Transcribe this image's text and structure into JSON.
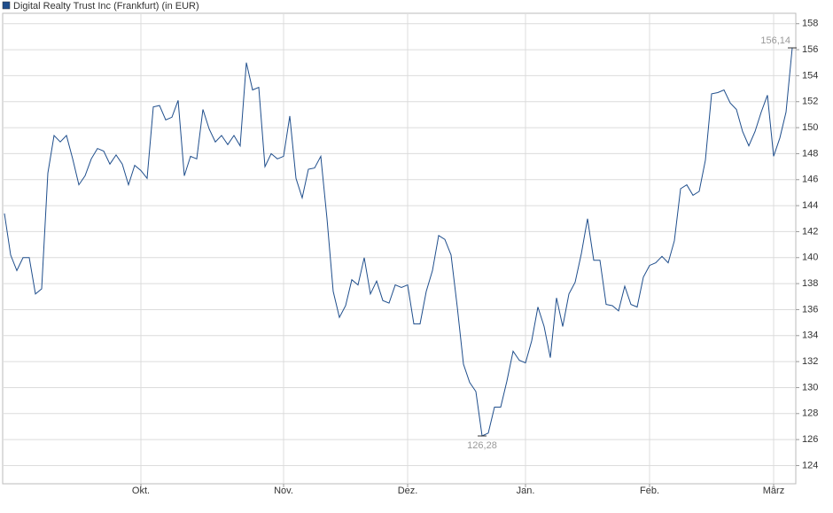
{
  "chart_data": {
    "type": "line",
    "categories": [
      null,
      null,
      null,
      null,
      null,
      null,
      null,
      null,
      null,
      null,
      null,
      null,
      null,
      null,
      null,
      null,
      null,
      null,
      null,
      null,
      null,
      null,
      "Okt.",
      null,
      null,
      null,
      null,
      null,
      null,
      null,
      null,
      null,
      null,
      null,
      null,
      null,
      null,
      null,
      null,
      null,
      null,
      null,
      null,
      null,
      null,
      "Nov.",
      null,
      null,
      null,
      null,
      null,
      null,
      null,
      null,
      null,
      null,
      null,
      null,
      null,
      null,
      null,
      null,
      null,
      null,
      null,
      "Dez.",
      null,
      null,
      null,
      null,
      null,
      null,
      null,
      null,
      null,
      null,
      null,
      null,
      null,
      null,
      null,
      null,
      null,
      null,
      "Jan.",
      null,
      null,
      null,
      null,
      null,
      null,
      null,
      null,
      null,
      null,
      null,
      null,
      null,
      null,
      null,
      null,
      null,
      null,
      null,
      "Feb.",
      null,
      null,
      null,
      null,
      null,
      null,
      null,
      null,
      null,
      null,
      null,
      null,
      null,
      null,
      null,
      null,
      null,
      null,
      null,
      "März",
      null,
      null,
      null
    ],
    "series": [
      {
        "name": "Digital Realty Trust Inc (Frankfurt) (in EUR)",
        "color": "#1f4e8c",
        "values": [
          143.4,
          140.2,
          139,
          140,
          140,
          137.2,
          137.6,
          146.5,
          149.4,
          148.9,
          149.4,
          147.6,
          145.6,
          146.3,
          147.6,
          148.4,
          148.2,
          147.2,
          147.9,
          147.2,
          145.6,
          147.1,
          146.7,
          146.1,
          151.6,
          151.7,
          150.6,
          150.8,
          152.1,
          146.3,
          147.8,
          147.6,
          151.4,
          149.9,
          148.9,
          149.4,
          148.7,
          149.4,
          148.6,
          155,
          152.9,
          153.1,
          147,
          148,
          147.6,
          147.8,
          150.9,
          146.1,
          144.6,
          146.8,
          146.9,
          147.8,
          143,
          137.4,
          135.4,
          136.3,
          138.3,
          137.9,
          140,
          137.2,
          138.2,
          136.7,
          136.5,
          137.9,
          137.7,
          137.9,
          134.9,
          134.9,
          137.4,
          139,
          141.7,
          141.4,
          140.2,
          136.2,
          131.8,
          130.4,
          129.7,
          126.28,
          126.5,
          128.5,
          128.5,
          130.5,
          132.8,
          132.1,
          131.9,
          133.6,
          136.2,
          134.7,
          132.3,
          136.9,
          134.7,
          137.2,
          138.1,
          140.3,
          143,
          139.8,
          139.8,
          136.4,
          136.3,
          135.9,
          137.8,
          136.4,
          136.2,
          138.5,
          139.4,
          139.6,
          140.1,
          139.6,
          141.3,
          145.3,
          145.6,
          144.8,
          145.1,
          147.5,
          152.6,
          152.7,
          152.9,
          151.9,
          151.4,
          149.7,
          148.6,
          149.7,
          151.2,
          152.5,
          147.8,
          149.2,
          151.2,
          156.14
        ],
        "value_labels": [
          null,
          null,
          null,
          null,
          null,
          null,
          null,
          null,
          null,
          null,
          null,
          null,
          null,
          null,
          null,
          null,
          null,
          null,
          null,
          null,
          null,
          null,
          null,
          null,
          null,
          null,
          null,
          null,
          null,
          null,
          null,
          null,
          null,
          null,
          null,
          null,
          null,
          null,
          null,
          null,
          null,
          null,
          null,
          null,
          null,
          null,
          null,
          null,
          null,
          null,
          null,
          null,
          null,
          null,
          null,
          null,
          null,
          null,
          null,
          null,
          null,
          null,
          null,
          null,
          null,
          null,
          null,
          null,
          null,
          null,
          null,
          null,
          null,
          null,
          null,
          null,
          null,
          "126,28",
          null,
          null,
          null,
          null,
          null,
          null,
          null,
          null,
          null,
          null,
          null,
          null,
          null,
          null,
          null,
          null,
          null,
          null,
          null,
          null,
          null,
          null,
          null,
          null,
          null,
          null,
          null,
          null,
          null,
          null,
          null,
          null,
          null,
          null,
          null,
          null,
          null,
          null,
          null,
          null,
          null,
          null,
          null,
          null,
          null,
          null,
          null,
          null,
          null,
          "156,14"
        ]
      }
    ],
    "ylim": [
      122.6,
      158.8
    ],
    "yticks": [
      124,
      126,
      128,
      130,
      132,
      134,
      136,
      138,
      140,
      142,
      144,
      146,
      148,
      150,
      152,
      154,
      156,
      158
    ],
    "grid": true,
    "legend": "top-left"
  }
}
